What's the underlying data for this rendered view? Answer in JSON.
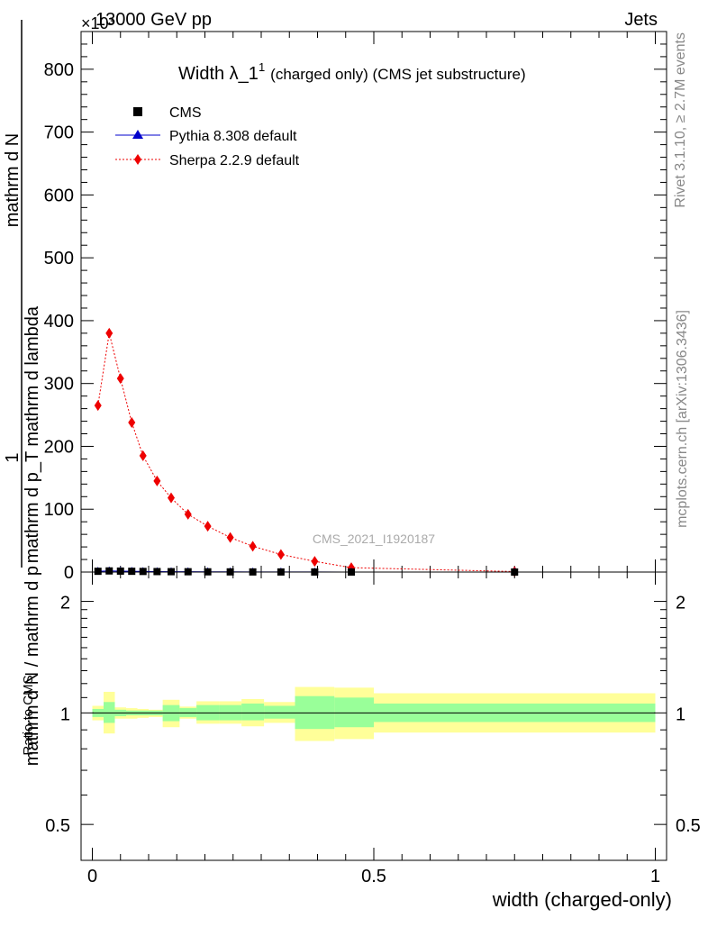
{
  "header": {
    "energy_label": "13000 GeV pp",
    "process_label": "Jets",
    "exponent_label": "×10³"
  },
  "side_labels": {
    "rivet": "Rivet 3.1.10, ≥ 2.7M events",
    "mcplots": "mcplots.cern.ch [arXiv:1306.3436]"
  },
  "chart_data": [
    {
      "type": "line",
      "title": "Width λ_1",
      "title_sup": "1",
      "title_suffix": "(charged only) (CMS jet substructure)",
      "watermark": "CMS_2021_I1920187",
      "ylabel_numerator": "1",
      "ylabel_denominator": "mathrm d N / mathrm d p",
      "ylabel_right": "mathrm d N",
      "ylabel_right2": "mathrm d p_T mathrm d lambda",
      "xlim": [
        0,
        1
      ],
      "ylim": [
        0,
        860
      ],
      "ytick_values": [
        0,
        100,
        200,
        300,
        400,
        500,
        600,
        700,
        800
      ],
      "ytick_labels": [
        "0",
        "100",
        "200",
        "300",
        "400",
        "500",
        "600",
        "700",
        "800"
      ],
      "legend": [
        {
          "name": "CMS",
          "marker": "square",
          "color": "#000000"
        },
        {
          "name": "Pythia 8.308 default",
          "marker": "triangle",
          "color": "#0000cc"
        },
        {
          "name": "Sherpa 2.2.9 default",
          "marker": "diamond",
          "color": "#ee0000"
        }
      ],
      "series": [
        {
          "name": "CMS",
          "x": [
            0.01,
            0.03,
            0.05,
            0.07,
            0.09,
            0.115,
            0.14,
            0.17,
            0.205,
            0.245,
            0.285,
            0.335,
            0.395,
            0.46,
            0.75
          ],
          "values": [
            1.2,
            1.8,
            1.5,
            1.2,
            0.95,
            0.75,
            0.6,
            0.5,
            0.38,
            0.28,
            0.2,
            0.14,
            0.09,
            0.04,
            0.01
          ]
        },
        {
          "name": "Pythia 8.308 default",
          "x": [
            0.01,
            0.03,
            0.05,
            0.07,
            0.09,
            0.115,
            0.14,
            0.17,
            0.205,
            0.245,
            0.285,
            0.335,
            0.395,
            0.46,
            0.75
          ],
          "values": [
            1.2,
            1.8,
            1.5,
            1.2,
            0.95,
            0.75,
            0.6,
            0.5,
            0.38,
            0.28,
            0.2,
            0.14,
            0.09,
            0.04,
            0.01
          ]
        },
        {
          "name": "Sherpa 2.2.9 default",
          "x": [
            0.01,
            0.03,
            0.05,
            0.07,
            0.09,
            0.115,
            0.14,
            0.17,
            0.205,
            0.245,
            0.285,
            0.335,
            0.395,
            0.46,
            0.75
          ],
          "values": [
            265,
            380,
            308,
            238,
            185,
            145,
            118,
            92,
            73,
            55,
            41,
            28,
            17,
            7,
            0.8
          ]
        }
      ]
    },
    {
      "type": "area",
      "ylabel": "Ratio to CMS",
      "xlabel": "width (charged-only)",
      "xlim": [
        0,
        1
      ],
      "ylim": [
        0.4,
        2.4
      ],
      "y_scale": "log",
      "xtick_values": [
        0,
        0.5,
        1
      ],
      "xtick_labels": [
        "0",
        "0.5",
        "1"
      ],
      "ytick_values": [
        0.5,
        1,
        2
      ],
      "ytick_labels": [
        "0.5",
        "1",
        "2"
      ],
      "reference_line": 1,
      "bins": [
        {
          "lo": 0.0,
          "hi": 0.02,
          "green": [
            0.975,
            1.025
          ],
          "yellow": [
            0.955,
            1.045
          ]
        },
        {
          "lo": 0.02,
          "hi": 0.04,
          "green": [
            0.94,
            1.07
          ],
          "yellow": [
            0.88,
            1.14
          ]
        },
        {
          "lo": 0.04,
          "hi": 0.06,
          "green": [
            0.98,
            1.02
          ],
          "yellow": [
            0.965,
            1.035
          ]
        },
        {
          "lo": 0.06,
          "hi": 0.08,
          "green": [
            0.985,
            1.015
          ],
          "yellow": [
            0.965,
            1.03
          ]
        },
        {
          "lo": 0.08,
          "hi": 0.1,
          "green": [
            0.985,
            1.015
          ],
          "yellow": [
            0.97,
            1.025
          ]
        },
        {
          "lo": 0.1,
          "hi": 0.125,
          "green": [
            0.985,
            1.015
          ],
          "yellow": [
            0.975,
            1.02
          ]
        },
        {
          "lo": 0.125,
          "hi": 0.155,
          "green": [
            0.95,
            1.05
          ],
          "yellow": [
            0.915,
            1.085
          ]
        },
        {
          "lo": 0.155,
          "hi": 0.185,
          "green": [
            0.975,
            1.03
          ],
          "yellow": [
            0.965,
            1.04
          ]
        },
        {
          "lo": 0.185,
          "hi": 0.225,
          "green": [
            0.955,
            1.05
          ],
          "yellow": [
            0.935,
            1.075
          ]
        },
        {
          "lo": 0.225,
          "hi": 0.265,
          "green": [
            0.955,
            1.05
          ],
          "yellow": [
            0.935,
            1.075
          ]
        },
        {
          "lo": 0.265,
          "hi": 0.305,
          "green": [
            0.955,
            1.06
          ],
          "yellow": [
            0.92,
            1.09
          ]
        },
        {
          "lo": 0.305,
          "hi": 0.36,
          "green": [
            0.965,
            1.045
          ],
          "yellow": [
            0.94,
            1.07
          ]
        },
        {
          "lo": 0.36,
          "hi": 0.43,
          "green": [
            0.905,
            1.11
          ],
          "yellow": [
            0.84,
            1.175
          ]
        },
        {
          "lo": 0.43,
          "hi": 0.5,
          "green": [
            0.915,
            1.1
          ],
          "yellow": [
            0.85,
            1.17
          ]
        },
        {
          "lo": 0.5,
          "hi": 1.0,
          "green": [
            0.945,
            1.06
          ],
          "yellow": [
            0.885,
            1.13
          ]
        }
      ],
      "colors": {
        "green": "#99ff99",
        "yellow": "#ffff99"
      }
    }
  ]
}
